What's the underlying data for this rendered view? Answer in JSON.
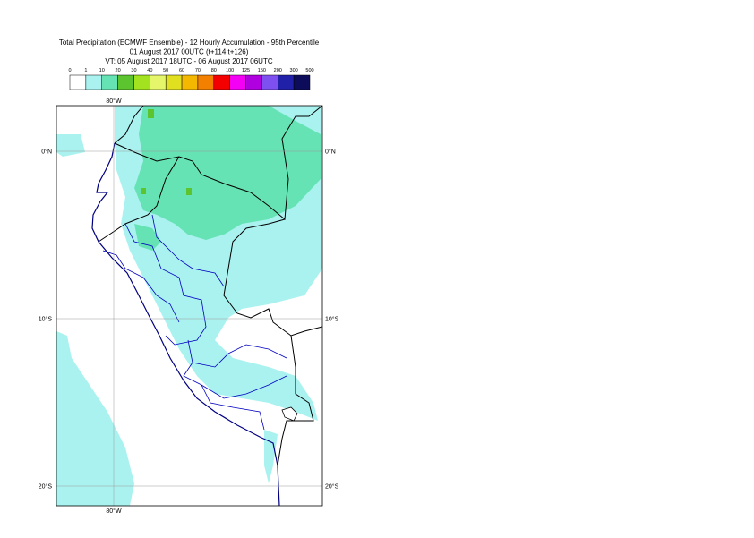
{
  "title_lines": [
    "Total Precipitation (ECMWF Ensemble) - 12 Hourly Accumulation - 95th Percentile",
    "01 August 2017 00UTC (t+114,t+126)",
    "VT: 05 August 2017 18UTC - 06 August 2017 06UTC"
  ],
  "legend": {
    "bounds": [
      0,
      1,
      10,
      20,
      30,
      40,
      50,
      60,
      70,
      80,
      100,
      125,
      150,
      200,
      300,
      500
    ],
    "colors": [
      "#ffffff",
      "#aaf2f0",
      "#66e3b4",
      "#5cc42e",
      "#a2e21e",
      "#e6f66a",
      "#e0e020",
      "#f4b800",
      "#f48000",
      "#f40000",
      "#f400f4",
      "#b000e0",
      "#7f50f0",
      "#2020a8",
      "#0c0c5a"
    ]
  },
  "map": {
    "longitude_label": "80°W",
    "latitude_labels": [
      "0°N",
      "10°S",
      "20°S"
    ]
  }
}
